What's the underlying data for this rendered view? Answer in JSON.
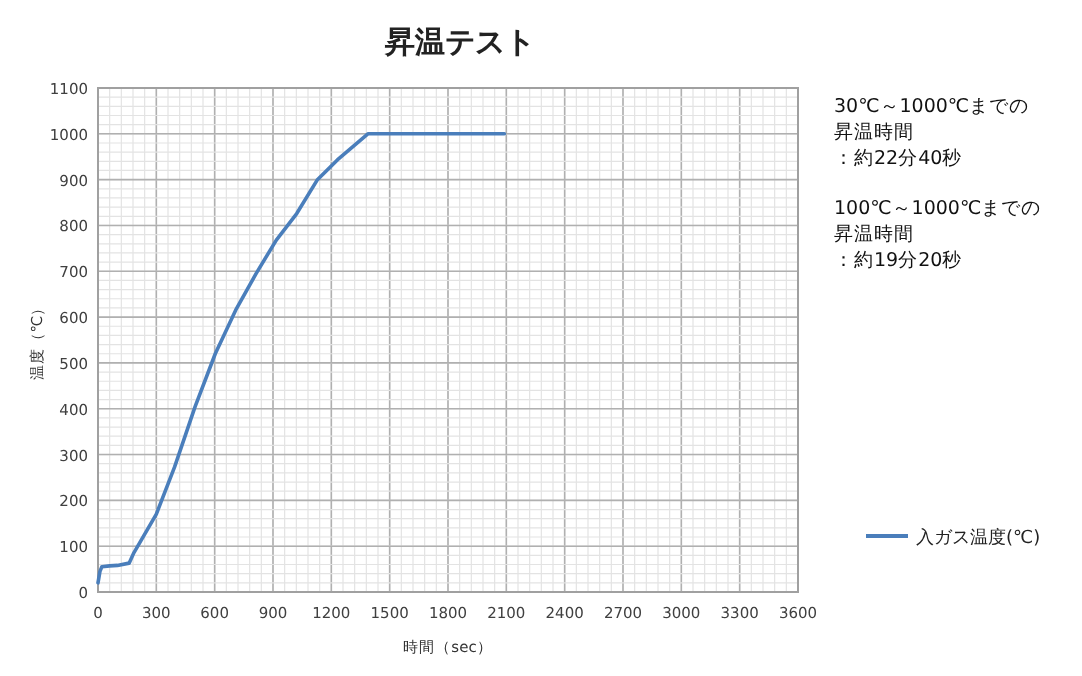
{
  "chart_data": {
    "type": "line",
    "title": "昇温テスト",
    "xlabel": "時間（sec）",
    "ylabel": "温度（℃）",
    "xlim": [
      0,
      3600
    ],
    "xticks": [
      0,
      300,
      600,
      900,
      1200,
      1500,
      1800,
      2100,
      2400,
      2700,
      3000,
      3300,
      3600
    ],
    "ylim": [
      0,
      1100
    ],
    "yticks": [
      0,
      100,
      200,
      300,
      400,
      500,
      600,
      700,
      800,
      900,
      1000,
      1100
    ],
    "grid": true,
    "legend": "right",
    "marker": "none",
    "line_style": "solid",
    "series": [
      {
        "name": "入ガス温度(℃)",
        "color": "#4a7ebb",
        "x": [
          0,
          10,
          20,
          60,
          100,
          160,
          185,
          300,
          394,
          499,
          603,
          708,
          813,
          917,
          1022,
          1127,
          1231,
          1388,
          2090
        ],
        "values": [
          20,
          45,
          55,
          57,
          58,
          63,
          86,
          170,
          273,
          404,
          520,
          615,
          695,
          768,
          826,
          899,
          943,
          1000,
          1000
        ]
      }
    ],
    "annotations": [
      "30℃～1000℃までの昇温時間",
      "：約22分40秒",
      "100℃～1000℃までの昇温時間",
      "：約19分20秒"
    ]
  }
}
